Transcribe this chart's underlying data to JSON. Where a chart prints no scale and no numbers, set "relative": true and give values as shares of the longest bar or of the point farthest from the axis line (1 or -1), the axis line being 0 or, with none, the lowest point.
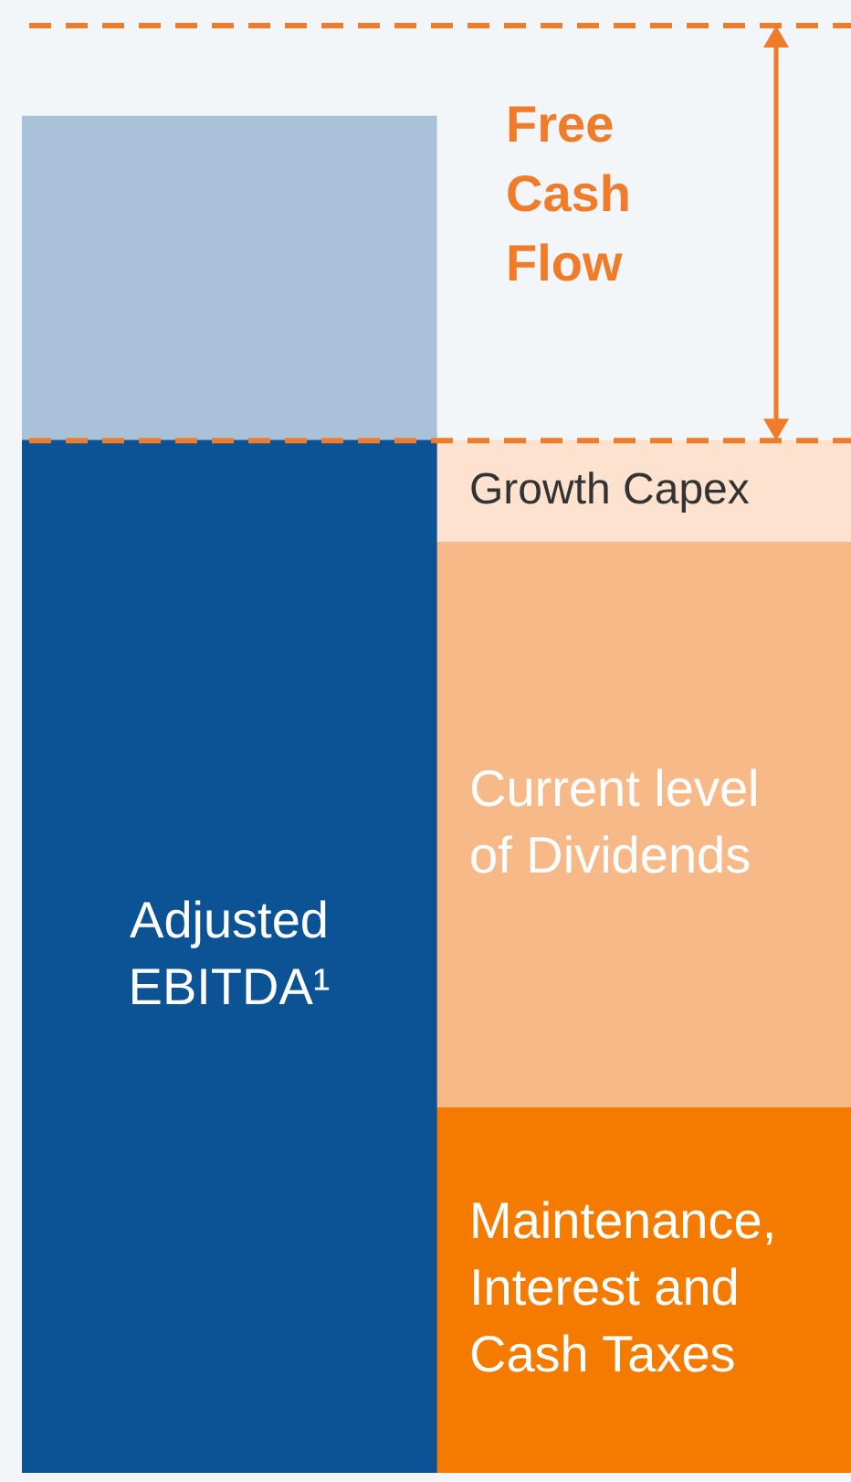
{
  "chart_data": {
    "type": "bar",
    "relative": true,
    "stacked": true,
    "categories": [
      null,
      null
    ],
    "series": [
      {
        "name": "Adjusted EBITDA¹",
        "color": "#0b5394",
        "values": [
          0.761,
          null
        ]
      },
      {
        "color": "#a9c2da",
        "values": [
          0.239,
          null
        ]
      },
      {
        "name": "Maintenance, Interest and Cash Taxes",
        "color": "#f47b00",
        "values": [
          null,
          0.269
        ]
      },
      {
        "name": "Current level of Dividends",
        "color": "#f8b988",
        "values": [
          null,
          0.417
        ]
      },
      {
        "name": "Growth Capex",
        "color": "#fde3cf",
        "values": [
          null,
          0.075
        ]
      }
    ],
    "ref_lines": [
      {
        "axis": "y",
        "value": 0.761,
        "color": "#f07c2a",
        "line_style": "dashed"
      },
      {
        "axis": "y",
        "value": 1.067,
        "color": "#f07c2a",
        "line_style": "dashed"
      }
    ],
    "annotations": [
      "Free Cash Flow"
    ],
    "legend": false
  }
}
